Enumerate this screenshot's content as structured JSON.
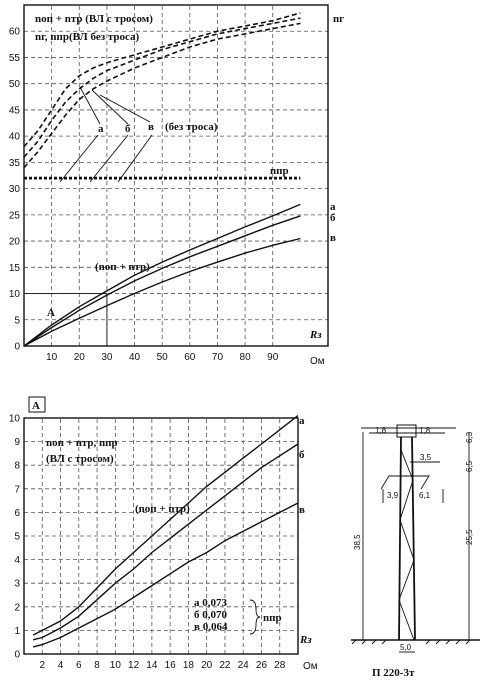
{
  "chart_data": [
    {
      "type": "line",
      "xlabel": "Rз",
      "x_unit": "Ом",
      "xlim": [
        0,
        110
      ],
      "ylim": [
        0,
        65
      ],
      "x_ticks": [
        10,
        20,
        30,
        40,
        50,
        60,
        70,
        80,
        90
      ],
      "y_ticks": [
        5,
        10,
        15,
        20,
        25,
        30,
        35,
        40,
        45,
        50,
        55,
        60
      ],
      "legend_lines": [
        "nоп + nтр (ВЛ с тросом)",
        "nг, nпр(ВЛ без троса)"
      ],
      "annotations": {
        "ng": "nг",
        "npr": "nпр",
        "sum": "(nоп + nтр)",
        "no_cable": "(без троса)",
        "point_A": "A",
        "curve_a": "а",
        "curve_b": "б",
        "curve_v": "в"
      },
      "marker": {
        "x": 30,
        "y": 10
      },
      "series": [
        {
          "name": "а",
          "style": "solid",
          "x": [
            0,
            10,
            20,
            30,
            40,
            50,
            60,
            70,
            80,
            90,
            100
          ],
          "y": [
            0,
            4,
            7.5,
            10.5,
            13.5,
            16,
            18.3,
            20.5,
            22.7,
            24.8,
            27
          ]
        },
        {
          "name": "б",
          "style": "solid",
          "x": [
            0,
            10,
            20,
            30,
            40,
            50,
            60,
            70,
            80,
            90,
            100
          ],
          "y": [
            0,
            3.5,
            6.8,
            9.7,
            12.4,
            14.8,
            17,
            19,
            21,
            23,
            24.8
          ]
        },
        {
          "name": "в",
          "style": "solid",
          "x": [
            0,
            10,
            20,
            30,
            40,
            50,
            60,
            70,
            80,
            90,
            100
          ],
          "y": [
            0,
            2.8,
            5.3,
            7.7,
            10,
            12.2,
            14.2,
            16,
            17.7,
            19.2,
            20.5
          ]
        },
        {
          "name": "а",
          "style": "dashed",
          "x": [
            0,
            5,
            10,
            15,
            20,
            25,
            30,
            40,
            50,
            60,
            70,
            80,
            90,
            100
          ],
          "y": [
            38,
            41,
            45,
            49,
            51.5,
            53,
            54,
            55.5,
            57,
            58.5,
            60,
            61,
            62,
            63.5
          ]
        },
        {
          "name": "б",
          "style": "dashed",
          "x": [
            0,
            5,
            10,
            15,
            20,
            25,
            30,
            40,
            50,
            60,
            70,
            80,
            90,
            100
          ],
          "y": [
            36,
            39,
            43,
            46.5,
            49,
            51,
            52.5,
            54.5,
            56.5,
            58,
            59.5,
            60.5,
            61.5,
            62.5
          ]
        },
        {
          "name": "в",
          "style": "dashed",
          "x": [
            0,
            5,
            10,
            15,
            20,
            25,
            30,
            40,
            50,
            60,
            70,
            80,
            90,
            100
          ],
          "y": [
            34,
            37,
            40.5,
            44,
            47,
            49,
            50.5,
            53,
            55,
            57,
            58.5,
            59.5,
            60.5,
            61.5
          ]
        },
        {
          "name": "nпр",
          "style": "thick-dashed",
          "x": [
            0,
            100
          ],
          "y": [
            32,
            32
          ]
        }
      ]
    },
    {
      "type": "line",
      "xlabel": "Rз",
      "x_unit": "Ом",
      "xlim": [
        0,
        30
      ],
      "ylim": [
        0,
        10
      ],
      "x_ticks": [
        2,
        4,
        6,
        8,
        10,
        12,
        14,
        16,
        18,
        20,
        22,
        24,
        26,
        28
      ],
      "y_ticks": [
        1,
        2,
        3,
        4,
        5,
        6,
        7,
        8,
        9,
        10
      ],
      "inset_label": "А",
      "legend_lines": [
        "nоп + nтр, nпр",
        "(ВЛ с тросом)"
      ],
      "annotations": {
        "sum": "(nоп + nтр)",
        "npr": "nпр",
        "npr_values": [
          "а 0,073",
          "б 0,070",
          "в 0,064"
        ],
        "curve_a": "а",
        "curve_b": "б",
        "curve_v": "в"
      },
      "series": [
        {
          "name": "а",
          "x": [
            1,
            2,
            4,
            6,
            8,
            10,
            12,
            14,
            16,
            18,
            20,
            22,
            24,
            26,
            28,
            30
          ],
          "y": [
            0.8,
            1.0,
            1.4,
            2.0,
            2.8,
            3.6,
            4.3,
            5.0,
            5.7,
            6.4,
            7.1,
            7.7,
            8.3,
            8.9,
            9.5,
            10.1
          ]
        },
        {
          "name": "б",
          "x": [
            1,
            2,
            4,
            6,
            8,
            10,
            12,
            14,
            16,
            18,
            20,
            22,
            24,
            26,
            28,
            30
          ],
          "y": [
            0.6,
            0.7,
            1.1,
            1.6,
            2.3,
            3.0,
            3.6,
            4.3,
            4.9,
            5.5,
            6.1,
            6.7,
            7.3,
            7.9,
            8.4,
            8.9
          ]
        },
        {
          "name": "в",
          "x": [
            1,
            2,
            4,
            6,
            8,
            10,
            12,
            14,
            16,
            18,
            20,
            22,
            24,
            26,
            28,
            30
          ],
          "y": [
            0.3,
            0.4,
            0.7,
            1.1,
            1.5,
            1.9,
            2.4,
            2.9,
            3.4,
            3.9,
            4.3,
            4.8,
            5.2,
            5.6,
            6.0,
            6.4
          ]
        }
      ]
    }
  ],
  "tower": {
    "caption": "П 220-3т",
    "dims": [
      "1,8",
      "1,8",
      "3,5",
      "3,9",
      "6,1",
      "6,3",
      "6,5",
      "38,5",
      "25,5",
      "5,0"
    ]
  }
}
